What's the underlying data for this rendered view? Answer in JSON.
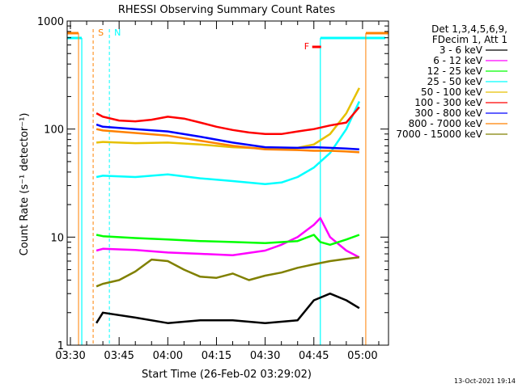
{
  "chart_data": {
    "type": "line",
    "title": "RHESSI Observing Summary Count Rates",
    "xlabel": "Start Time (26-Feb-02 03:29:02)",
    "ylabel": "Count Rate (s⁻¹ detector⁻¹)",
    "yscale": "log",
    "ylim": [
      1,
      1000
    ],
    "x_range_minutes_from_0330": [
      -1,
      98
    ],
    "x_ticks": [
      {
        "label": "03:30",
        "minute": 0
      },
      {
        "label": "03:45",
        "minute": 15
      },
      {
        "label": "04:00",
        "minute": 30
      },
      {
        "label": "04:15",
        "minute": 45
      },
      {
        "label": "04:30",
        "minute": 60
      },
      {
        "label": "04:45",
        "minute": 75
      },
      {
        "label": "05:00",
        "minute": 90
      }
    ],
    "y_ticks": [
      {
        "label": "1",
        "value": 1
      },
      {
        "label": "10",
        "value": 10
      },
      {
        "label": "100",
        "value": 100
      },
      {
        "label": "1000",
        "value": 1000
      }
    ],
    "legend_header": [
      "Det 1,3,4,5,6,9,",
      "FDecim 1, Att 1"
    ],
    "series": [
      {
        "name": "3 - 6 keV",
        "color": "#000000",
        "minutes": [
          8,
          10,
          20,
          30,
          40,
          50,
          60,
          70,
          75,
          80,
          85,
          89
        ],
        "values": [
          1.6,
          2.0,
          1.8,
          1.6,
          1.7,
          1.7,
          1.6,
          1.7,
          2.6,
          3.0,
          2.6,
          2.2
        ]
      },
      {
        "name": "6 - 12 keV",
        "color": "#ff00ff",
        "minutes": [
          8,
          10,
          20,
          30,
          40,
          50,
          60,
          65,
          70,
          75,
          77,
          80,
          85,
          89
        ],
        "values": [
          7.5,
          7.8,
          7.6,
          7.2,
          7.0,
          6.8,
          7.5,
          8.5,
          10,
          13,
          15,
          10,
          7.5,
          6.5
        ]
      },
      {
        "name": "12 - 25 keV",
        "color": "#00ff00",
        "minutes": [
          8,
          10,
          20,
          30,
          40,
          50,
          60,
          70,
          75,
          77,
          80,
          85,
          89
        ],
        "values": [
          10.5,
          10.2,
          9.8,
          9.5,
          9.2,
          9.0,
          8.8,
          9.2,
          10.5,
          9.0,
          8.5,
          9.5,
          10.5
        ]
      },
      {
        "name": "25 - 50 keV",
        "color": "#00ffff",
        "minutes": [
          8,
          10,
          20,
          30,
          40,
          50,
          60,
          65,
          70,
          75,
          80,
          85,
          89
        ],
        "values": [
          36,
          37,
          36,
          38,
          35,
          33,
          31,
          32,
          36,
          44,
          60,
          100,
          180
        ]
      },
      {
        "name": "50 - 100 keV",
        "color": "#e6c000",
        "minutes": [
          8,
          10,
          20,
          30,
          40,
          50,
          60,
          65,
          70,
          75,
          80,
          85,
          89
        ],
        "values": [
          75,
          76,
          74,
          75,
          72,
          68,
          66,
          65,
          67,
          72,
          90,
          140,
          240
        ]
      },
      {
        "name": "100 - 300 keV",
        "color": "#ff0000",
        "minutes": [
          8,
          10,
          15,
          20,
          25,
          30,
          35,
          40,
          45,
          50,
          55,
          60,
          65,
          70,
          75,
          80,
          85,
          89
        ],
        "values": [
          140,
          130,
          120,
          118,
          122,
          130,
          125,
          115,
          105,
          98,
          93,
          90,
          90,
          95,
          100,
          108,
          115,
          160
        ]
      },
      {
        "name": "300 - 800 keV",
        "color": "#0000ff",
        "minutes": [
          8,
          10,
          20,
          30,
          40,
          50,
          60,
          70,
          75,
          80,
          85,
          89
        ],
        "values": [
          110,
          105,
          100,
          95,
          85,
          75,
          68,
          67,
          68,
          67,
          66,
          65
        ]
      },
      {
        "name": "800 - 7000 keV",
        "color": "#ff8000",
        "minutes": [
          8,
          10,
          20,
          30,
          40,
          50,
          60,
          70,
          75,
          80,
          85,
          89
        ],
        "values": [
          100,
          97,
          92,
          87,
          78,
          70,
          65,
          64,
          63,
          63,
          62,
          61
        ]
      },
      {
        "name": "7000 - 15000 keV",
        "color": "#808000",
        "minutes": [
          8,
          10,
          15,
          20,
          25,
          30,
          35,
          40,
          45,
          50,
          55,
          60,
          65,
          70,
          75,
          80,
          85,
          89
        ],
        "values": [
          3.5,
          3.7,
          4.0,
          4.8,
          6.2,
          6.0,
          5.0,
          4.3,
          4.2,
          4.6,
          4.0,
          4.4,
          4.7,
          5.2,
          5.6,
          6.0,
          6.3,
          6.5
        ]
      }
    ],
    "markers": [
      {
        "label": "S",
        "color": "#ff8000",
        "minute": 7,
        "style": "dashed"
      },
      {
        "label": "N",
        "color": "#00ffff",
        "minute": 12,
        "style": "dashed"
      },
      {
        "label": "F",
        "color": "#ff0000",
        "minute": 73,
        "style": "bar"
      }
    ],
    "night_intervals": [
      {
        "color": "#00ffff",
        "start": -1,
        "end": 3.5
      },
      {
        "color": "#00ffff",
        "start": 77,
        "end": 97
      }
    ],
    "saa_intervals": [
      {
        "color": "#ff8000",
        "start": -1,
        "end": 2.5
      },
      {
        "color": "#ff8000",
        "start": 91,
        "end": 98
      }
    ],
    "grid": false,
    "legend_position": "top-right outside"
  },
  "footer": {
    "timestamp": "13-Oct-2021 19:14"
  }
}
